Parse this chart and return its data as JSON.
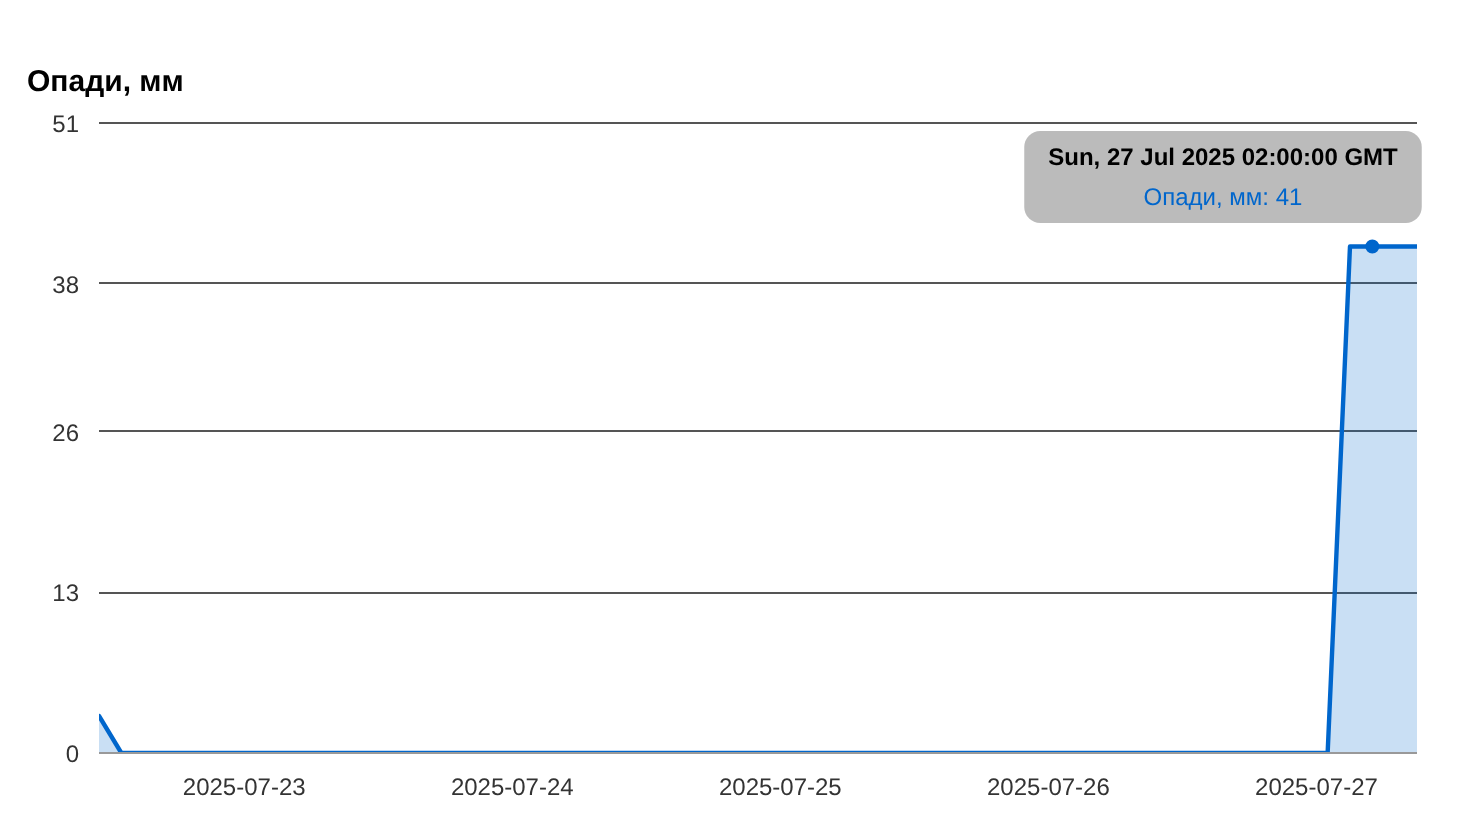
{
  "chart_data": {
    "type": "area",
    "title": "Опади, мм",
    "x": [
      "2025-07-22T11:00",
      "2025-07-22T13:00",
      "2025-07-27T01:00",
      "2025-07-27T03:00",
      "2025-07-27T05:00",
      "2025-07-27T09:00"
    ],
    "series": [
      {
        "color": "#0066cc",
        "values": [
          3,
          0,
          0,
          41,
          41,
          41
        ]
      },
      {
        "type": "scatter",
        "marker": "circle",
        "color": "#0066cc",
        "x": [
          "2025-07-27T05:00"
        ],
        "values": [
          41
        ]
      }
    ],
    "xlim": [
      "2025-07-22T11:00",
      "2025-07-27T09:00"
    ],
    "xticks": [
      "2025-07-23",
      "2025-07-24",
      "2025-07-25",
      "2025-07-26",
      "2025-07-27"
    ],
    "ylim": [
      0,
      51
    ],
    "yticks": [
      0,
      13,
      26,
      38,
      51
    ],
    "grid": "y",
    "annotations": [
      "Sun, 27 Jul 2025 02:00:00 GMT",
      "Опади, мм: 41"
    ]
  }
}
